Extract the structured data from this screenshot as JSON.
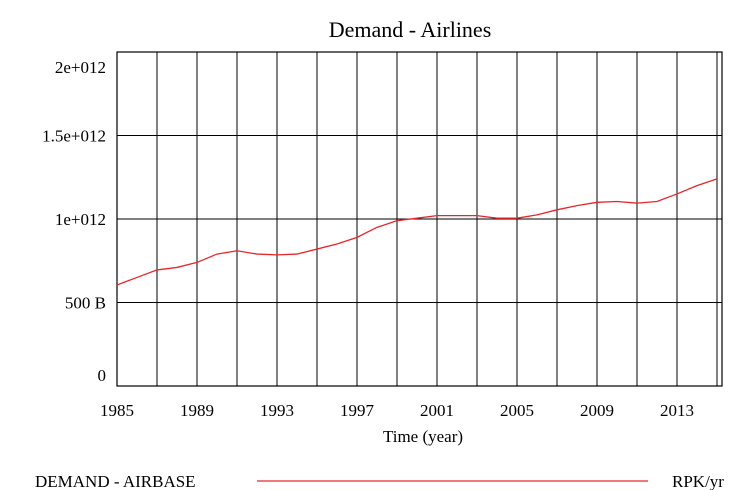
{
  "chart_data": {
    "type": "line",
    "title": "Demand - Airlines",
    "x_label": "Time (year)",
    "x": [
      1985,
      1986,
      1987,
      1988,
      1989,
      1990,
      1991,
      1992,
      1993,
      1994,
      1995,
      1996,
      1997,
      1998,
      1999,
      2000,
      2001,
      2002,
      2003,
      2004,
      2005,
      2006,
      2007,
      2008,
      2009,
      2010,
      2011,
      2012,
      2013,
      2014,
      2015
    ],
    "series": [
      {
        "name": "DEMAND - AIRBASE",
        "units": "RPK/yr",
        "color": "#e8262a",
        "values": [
          605000000000,
          650000000000,
          695000000000,
          710000000000,
          740000000000,
          790000000000,
          810000000000,
          790000000000,
          785000000000,
          790000000000,
          820000000000,
          850000000000,
          890000000000,
          950000000000,
          990000000000,
          1005000000000,
          1020000000000,
          1020000000000,
          1020000000000,
          1005000000000,
          1005000000000,
          1025000000000,
          1055000000000,
          1080000000000,
          1100000000000,
          1105000000000,
          1095000000000,
          1105000000000,
          1150000000000,
          1200000000000,
          1240000000000
        ]
      }
    ],
    "xlim": [
      1985,
      2015.25
    ],
    "xticks": [
      1985,
      1989,
      1993,
      1997,
      2001,
      2005,
      2009,
      2013
    ],
    "x_gridlines": [
      1987,
      1989,
      1991,
      1993,
      1995,
      1997,
      1999,
      2001,
      2003,
      2005,
      2007,
      2009,
      2011,
      2013,
      2015
    ],
    "ylim": [
      0,
      2000000000000
    ],
    "yticks": [
      0,
      {
        "value": 500000000000,
        "label": "500 B"
      },
      {
        "value": 1000000000000,
        "label": "1e+012"
      },
      {
        "value": 1500000000000,
        "label": "1.5e+012"
      },
      {
        "value": 2000000000000,
        "label": "2e+012"
      }
    ],
    "grid": true
  }
}
